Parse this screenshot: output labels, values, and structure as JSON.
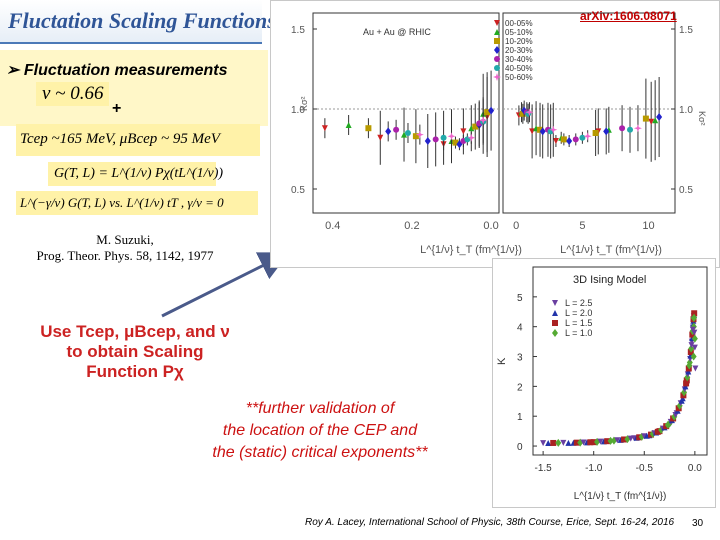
{
  "slide": {
    "title": "Fluctation Scaling Functions",
    "bullet": "Fluctuation measurements",
    "nu_eq": "ν ~ 0.66",
    "plus": "+",
    "tcep_eq": "Tcep ~165 MeV, μBcep ~ 95 MeV",
    "scaling_eq": "G(T, L) = L^(1/ν) Pχ(tL^(1/ν))",
    "vs_eq": "L^(−γ/ν) G(T, L) vs. L^(1/ν) tT , γ/ν = 0",
    "reference_line1": "M. Suzuki,",
    "reference_line2": "Prog. Theor. Phys. 58, 1142, 1977",
    "use_line1": "Use Tcep, μBcep, and ν",
    "use_line2": "to obtain Scaling",
    "use_line3": "Function Pχ",
    "validation_line1": "**further validation of",
    "validation_line2": "the location of the CEP and",
    "validation_line3": "the (static) critical exponents**",
    "footer": "Roy A. Lacey, International School of Physic, 38th Course, Erice, Sept. 16-24, 2016",
    "page_number": "30",
    "arxiv": "arXiv:1606.08071"
  },
  "chart_data": [
    {
      "type": "scatter",
      "title": "Au + Au @ RHIC",
      "xlabel": "L^{1/ν} t_T (fm^{1/ν})",
      "ylabel": "Kσ²",
      "left_panel": {
        "x_ticks": [
          "0.4",
          "0.2",
          "0.0"
        ],
        "xlim": [
          0.45,
          -0.02
        ],
        "y_ticks": [
          "0.5",
          "1.0",
          "1.5"
        ],
        "ylim": [
          0.35,
          1.6
        ]
      },
      "right_panel": {
        "x_ticks": [
          "0",
          "5",
          "10"
        ],
        "xlim": [
          -1,
          12
        ],
        "y_ticks": [
          "0.5",
          "1.0",
          "1.5"
        ],
        "ylim": [
          0.35,
          1.6
        ]
      },
      "series": [
        {
          "name": "00-05%",
          "color": "#cc2222",
          "marker": "triangle-down",
          "left": [
            [
              0.42,
              0.88
            ],
            [
              0.28,
              0.82
            ],
            [
              0.12,
              0.78
            ],
            [
              0.07,
              0.86
            ],
            [
              0.01,
              0.95
            ]
          ],
          "right": [
            [
              0.2,
              0.96
            ],
            [
              1.2,
              0.86
            ],
            [
              3.0,
              0.8
            ],
            [
              6.2,
              0.86
            ],
            [
              10.2,
              0.92
            ]
          ]
        },
        {
          "name": "05-10%",
          "color": "#22aa22",
          "marker": "triangle-up",
          "left": [
            [
              0.36,
              0.9
            ],
            [
              0.22,
              0.84
            ],
            [
              0.1,
              0.8
            ],
            [
              0.05,
              0.88
            ],
            [
              0.02,
              0.97
            ]
          ],
          "right": [
            [
              0.4,
              0.98
            ],
            [
              1.5,
              0.88
            ],
            [
              3.4,
              0.82
            ],
            [
              7.0,
              0.87
            ],
            [
              10.5,
              0.93
            ]
          ]
        },
        {
          "name": "10-20%",
          "color": "#b89a00",
          "marker": "square",
          "left": [
            [
              0.31,
              0.88
            ],
            [
              0.19,
              0.83
            ],
            [
              0.09,
              0.79
            ],
            [
              0.04,
              0.89
            ],
            [
              0.01,
              0.98
            ]
          ],
          "right": [
            [
              0.5,
              0.97
            ],
            [
              1.8,
              0.87
            ],
            [
              3.6,
              0.81
            ],
            [
              6.0,
              0.85
            ],
            [
              9.8,
              0.94
            ]
          ]
        },
        {
          "name": "20-30%",
          "color": "#2222cc",
          "marker": "diamond",
          "left": [
            [
              0.26,
              0.86
            ],
            [
              0.16,
              0.8
            ],
            [
              0.08,
              0.78
            ],
            [
              0.03,
              0.9
            ],
            [
              0.0,
              0.99
            ]
          ],
          "right": [
            [
              0.6,
              0.99
            ],
            [
              2.0,
              0.86
            ],
            [
              4.0,
              0.8
            ],
            [
              6.8,
              0.86
            ],
            [
              10.8,
              0.95
            ]
          ]
        },
        {
          "name": "30-40%",
          "color": "#aa22aa",
          "marker": "circle",
          "left": [
            [
              0.24,
              0.87
            ],
            [
              0.14,
              0.81
            ],
            [
              0.07,
              0.8
            ],
            [
              0.03,
              0.91
            ]
          ],
          "right": [
            [
              0.8,
              0.98
            ],
            [
              2.4,
              0.87
            ],
            [
              4.5,
              0.81
            ],
            [
              8.0,
              0.88
            ]
          ]
        },
        {
          "name": "40-50%",
          "color": "#22aaaa",
          "marker": "circle",
          "left": [
            [
              0.21,
              0.85
            ],
            [
              0.12,
              0.82
            ],
            [
              0.06,
              0.81
            ],
            [
              0.02,
              0.92
            ]
          ],
          "right": [
            [
              0.9,
              0.97
            ],
            [
              2.6,
              0.86
            ],
            [
              5.0,
              0.82
            ],
            [
              8.6,
              0.87
            ]
          ]
        },
        {
          "name": "50-60%",
          "color": "#ee66cc",
          "marker": "star",
          "left": [
            [
              0.18,
              0.84
            ],
            [
              0.1,
              0.83
            ],
            [
              0.05,
              0.82
            ],
            [
              0.02,
              0.93
            ]
          ],
          "right": [
            [
              1.0,
              0.98
            ],
            [
              2.8,
              0.87
            ],
            [
              5.4,
              0.83
            ],
            [
              9.2,
              0.88
            ]
          ]
        }
      ]
    },
    {
      "type": "scatter",
      "title": "3D Ising Model",
      "xlabel": "L^{1/ν} t_T (fm^{1/ν})",
      "ylabel": "K",
      "x_ticks": [
        "-1.5",
        "-1.0",
        "-0.5",
        "0.0"
      ],
      "xlim": [
        -1.6,
        0.12
      ],
      "y_ticks": [
        "0",
        "1",
        "2",
        "3",
        "4",
        "5"
      ],
      "ylim": [
        -0.3,
        6.0
      ],
      "series": [
        {
          "name": "L = 2.5",
          "color": "#6a3fa0",
          "marker": "triangle-down"
        },
        {
          "name": "L = 2.0",
          "color": "#2233aa",
          "marker": "triangle-up"
        },
        {
          "name": "L = 1.5",
          "color": "#aa2222",
          "marker": "square"
        },
        {
          "name": "L = 1.0",
          "color": "#55aa33",
          "marker": "diamond"
        }
      ],
      "curve": [
        [
          -1.5,
          0.1
        ],
        [
          -1.2,
          0.11
        ],
        [
          -1.0,
          0.13
        ],
        [
          -0.8,
          0.18
        ],
        [
          -0.6,
          0.26
        ],
        [
          -0.45,
          0.36
        ],
        [
          -0.35,
          0.5
        ],
        [
          -0.25,
          0.75
        ],
        [
          -0.18,
          1.1
        ],
        [
          -0.12,
          1.6
        ],
        [
          -0.08,
          2.2
        ],
        [
          -0.05,
          2.8
        ],
        [
          -0.03,
          3.5
        ],
        [
          -0.015,
          4.2
        ],
        [
          -0.005,
          4.5
        ]
      ]
    }
  ]
}
